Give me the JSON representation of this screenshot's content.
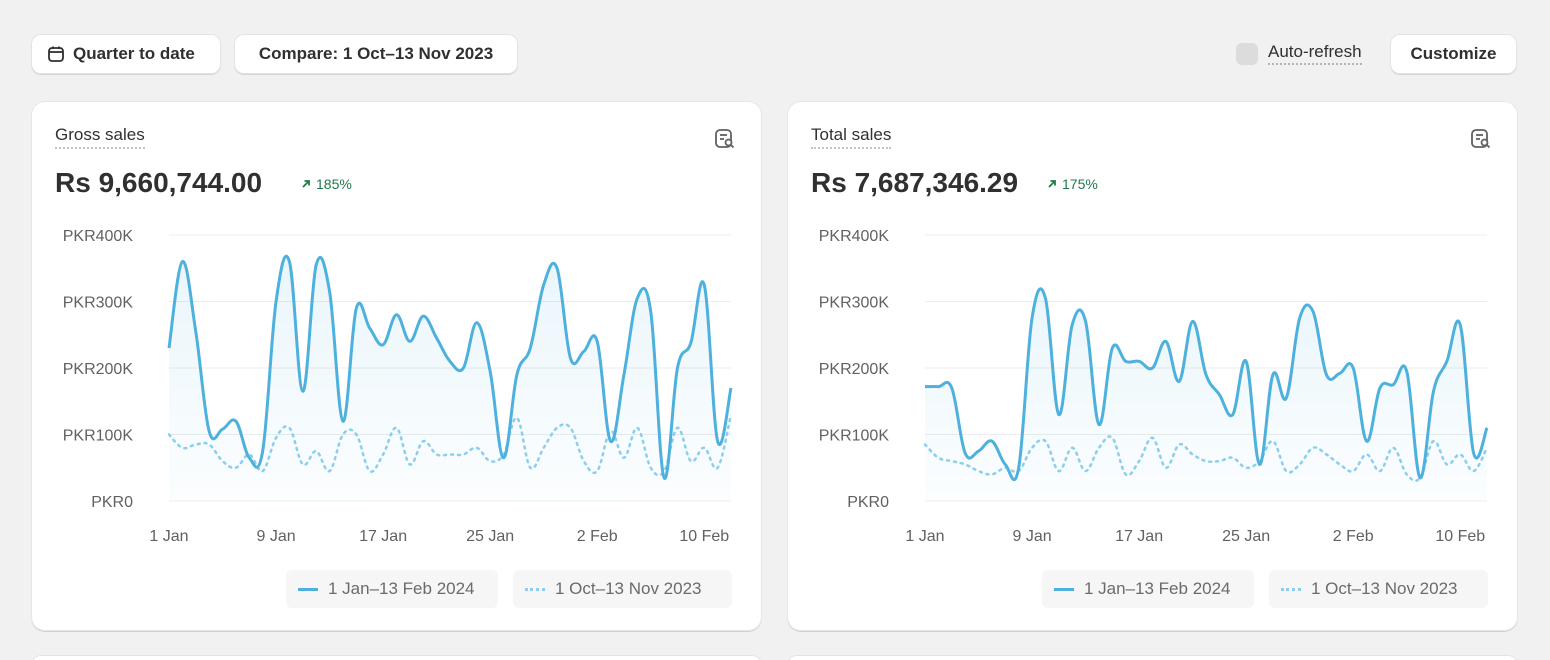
{
  "toolbar": {
    "date_label": "Quarter to date",
    "compare_label": "Compare: 1 Oct–13 Nov 2023",
    "auto_refresh_label": "Auto-refresh",
    "customize_label": "Customize"
  },
  "cards": [
    {
      "title": "Gross sales",
      "value": "Rs 9,660,744.00",
      "change": "185%",
      "legend": [
        "1 Jan–13 Feb 2024",
        "1 Oct–13 Nov 2023"
      ]
    },
    {
      "title": "Total sales",
      "value": "Rs 7,687,346.29",
      "change": "175%",
      "legend": [
        "1 Jan–13 Feb 2024",
        "1 Oct–13 Nov 2023"
      ]
    }
  ],
  "colors": {
    "current": "#4eb1dd",
    "previous": "#8dd0ee",
    "positive": "#1f7a4b"
  },
  "chart_data": [
    {
      "type": "line",
      "ylim": [
        0,
        400
      ],
      "yticks": [
        "PKR0",
        "PKR100K",
        "PKR200K",
        "PKR300K",
        "PKR400K"
      ],
      "xticks": [
        "1 Jan",
        "9 Jan",
        "17 Jan",
        "25 Jan",
        "2 Feb",
        "10 Feb"
      ],
      "series": [
        {
          "name": "1 Jan–13 Feb 2024",
          "values": [
            230,
            360,
            255,
            105,
            108,
            120,
            65,
            75,
            300,
            360,
            165,
            355,
            315,
            120,
            290,
            260,
            235,
            280,
            240,
            278,
            245,
            210,
            200,
            268,
            195,
            65,
            190,
            230,
            325,
            350,
            215,
            225,
            240,
            90,
            190,
            305,
            285,
            35,
            200,
            238,
            325,
            90,
            170
          ]
        },
        {
          "name": "1 Oct–13 Nov 2023",
          "values": [
            100,
            80,
            85,
            85,
            60,
            50,
            70,
            45,
            95,
            110,
            55,
            75,
            45,
            100,
            100,
            45,
            70,
            110,
            55,
            90,
            70,
            70,
            70,
            80,
            60,
            70,
            125,
            50,
            80,
            110,
            110,
            60,
            45,
            105,
            65,
            110,
            50,
            45,
            110,
            60,
            80,
            50,
            130
          ]
        }
      ]
    },
    {
      "type": "line",
      "ylim": [
        0,
        400
      ],
      "yticks": [
        "PKR0",
        "PKR100K",
        "PKR200K",
        "PKR300K",
        "PKR400K"
      ],
      "xticks": [
        "1 Jan",
        "9 Jan",
        "17 Jan",
        "25 Jan",
        "2 Feb",
        "10 Feb"
      ],
      "series": [
        {
          "name": "1 Jan–13 Feb 2024",
          "values": [
            172,
            172,
            170,
            72,
            75,
            90,
            55,
            50,
            275,
            305,
            130,
            265,
            270,
            115,
            230,
            210,
            210,
            200,
            240,
            180,
            270,
            190,
            160,
            130,
            210,
            55,
            190,
            155,
            275,
            285,
            190,
            192,
            200,
            90,
            170,
            175,
            195,
            35,
            165,
            210,
            265,
            72,
            110
          ]
        },
        {
          "name": "1 Oct–13 Nov 2023",
          "values": [
            85,
            65,
            60,
            55,
            45,
            40,
            50,
            45,
            80,
            90,
            45,
            80,
            45,
            80,
            95,
            40,
            60,
            95,
            50,
            85,
            70,
            60,
            60,
            65,
            50,
            60,
            90,
            45,
            55,
            80,
            70,
            55,
            45,
            70,
            45,
            80,
            40,
            35,
            90,
            55,
            70,
            45,
            80
          ]
        }
      ]
    }
  ]
}
